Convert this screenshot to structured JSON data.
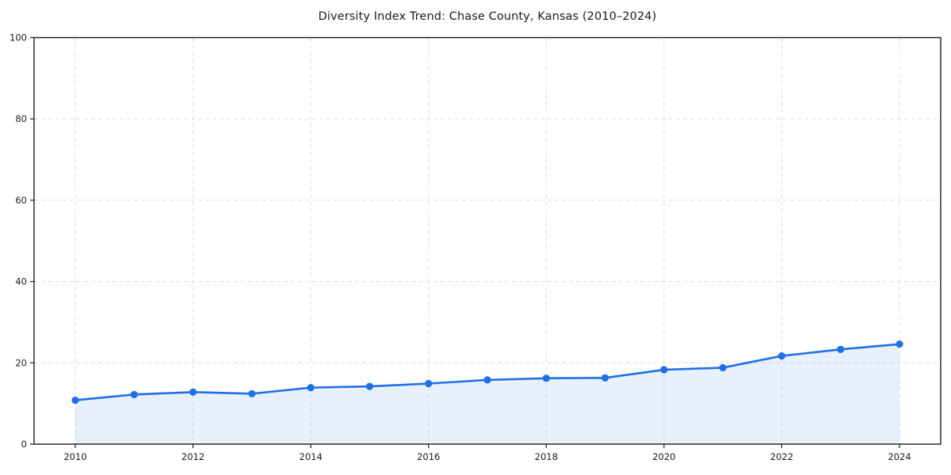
{
  "chart_data": {
    "type": "line",
    "title": "Diversity Index Trend: Chase County, Kansas (2010–2024)",
    "series_name": "Diversity Index",
    "x": [
      2010,
      2011,
      2012,
      2013,
      2014,
      2015,
      2016,
      2017,
      2018,
      2019,
      2020,
      2021,
      2022,
      2023,
      2024
    ],
    "values": [
      10.8,
      12.2,
      12.8,
      12.4,
      13.9,
      14.2,
      14.9,
      15.8,
      16.2,
      16.3,
      18.3,
      18.8,
      21.7,
      23.3,
      24.6
    ],
    "xlabel": "",
    "ylabel": "",
    "xlim": [
      2009.3,
      2024.7
    ],
    "ylim": [
      0,
      100
    ],
    "xticks": [
      2010,
      2012,
      2014,
      2016,
      2018,
      2020,
      2022,
      2024
    ],
    "yticks": [
      0,
      20,
      40,
      60,
      80,
      100
    ],
    "grid": "dashed-both-axes",
    "legend": "none",
    "marker": "circle",
    "area_fill": true,
    "colors": {
      "line": "#1f6fe8",
      "marker": "#1f6fe8",
      "area": "rgba(31, 111, 232, 0.10)",
      "grid": "#dcdcdc",
      "spine": "#1c1c1c",
      "tick_label": "#1a1a1a",
      "title": "#1a1a1a",
      "background": "#ffffff"
    }
  }
}
